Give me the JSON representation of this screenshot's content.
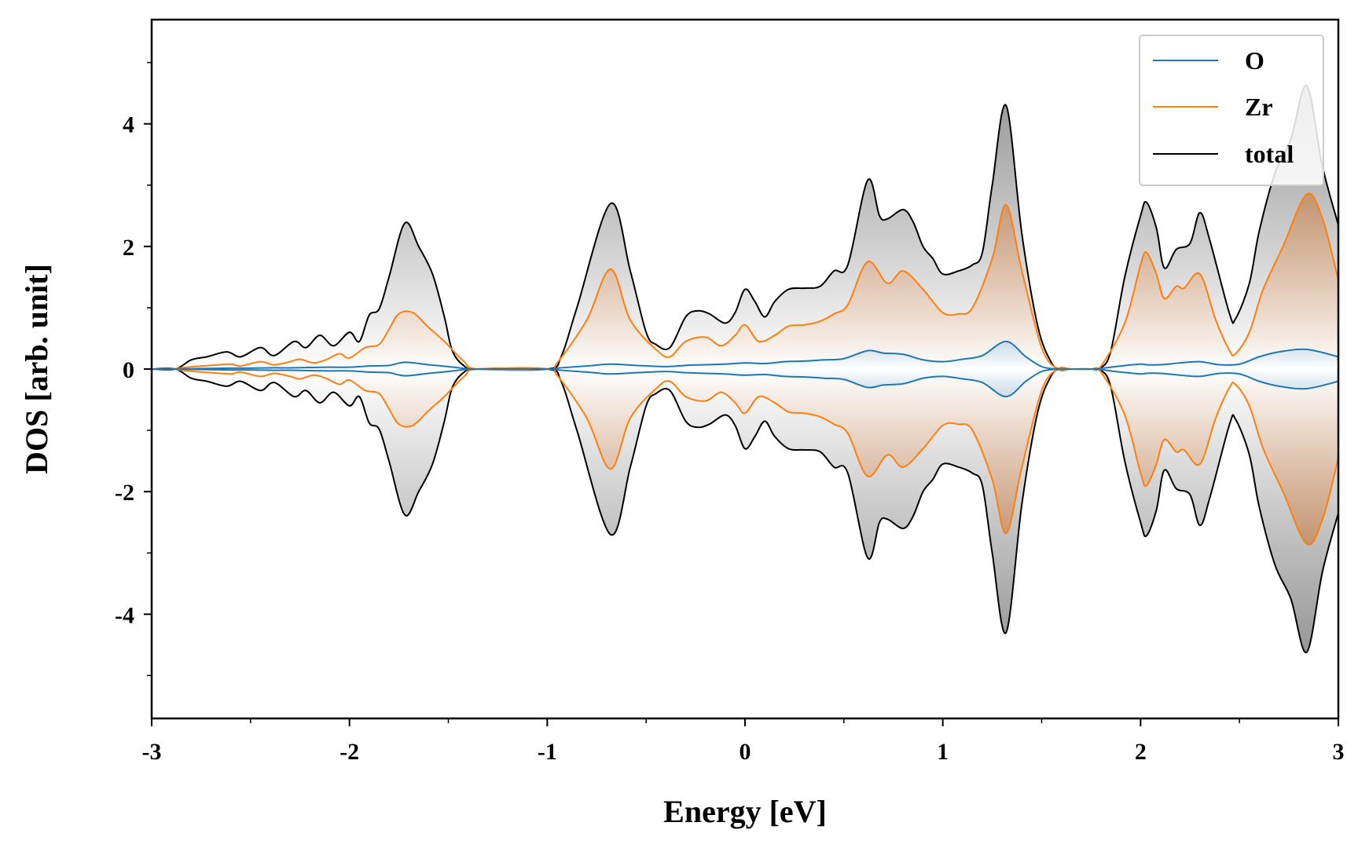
{
  "chart_data": {
    "type": "line",
    "title": "",
    "xlabel": "Energy [eV]",
    "ylabel": "DOS [arb. unit]",
    "xlim": [
      -3,
      3
    ],
    "ylim": [
      -5.7,
      5.7
    ],
    "xticks": [
      -3,
      -2,
      -1,
      0,
      1,
      2,
      3
    ],
    "xtick_labels": [
      "-3",
      "-2",
      "-1",
      "0",
      "1",
      "2",
      "3"
    ],
    "yticks": [
      -4,
      -2,
      0,
      2,
      4
    ],
    "ytick_labels": [
      "-4",
      "-2",
      "0",
      "2",
      "4"
    ],
    "legend_position": "top-right",
    "mirrored": true,
    "series": [
      {
        "name": "O",
        "color": "#1f77b4",
        "x": [
          -3,
          -2.88,
          -2.8,
          -2.7,
          -2.6,
          -2.5,
          -2.4,
          -2.3,
          -2.2,
          -2.1,
          -2.0,
          -1.9,
          -1.8,
          -1.72,
          -1.6,
          -1.5,
          -1.42,
          -1.35,
          -1.0,
          -0.93,
          -0.8,
          -0.68,
          -0.55,
          -0.4,
          -0.3,
          -0.2,
          -0.1,
          0.0,
          0.1,
          0.2,
          0.3,
          0.4,
          0.5,
          0.62,
          0.7,
          0.8,
          0.9,
          1.0,
          1.1,
          1.2,
          1.32,
          1.42,
          1.5,
          1.58,
          1.65,
          1.75,
          1.8,
          1.9,
          2.0,
          2.03,
          2.1,
          2.2,
          2.3,
          2.4,
          2.5,
          2.6,
          2.7,
          2.84,
          3.0
        ],
        "y": [
          0,
          0,
          0.005,
          0.01,
          0.015,
          0.015,
          0.02,
          0.02,
          0.025,
          0.03,
          0.03,
          0.05,
          0.06,
          0.11,
          0.07,
          0.04,
          0.01,
          0,
          0,
          0.02,
          0.05,
          0.08,
          0.06,
          0.04,
          0.06,
          0.07,
          0.08,
          0.1,
          0.09,
          0.12,
          0.13,
          0.15,
          0.17,
          0.3,
          0.26,
          0.24,
          0.15,
          0.12,
          0.16,
          0.22,
          0.45,
          0.2,
          0.04,
          0,
          0,
          0,
          0.01,
          0.05,
          0.08,
          0.07,
          0.07,
          0.1,
          0.12,
          0.07,
          0.08,
          0.2,
          0.28,
          0.32,
          0.2
        ]
      },
      {
        "name": "Zr",
        "color": "#ff7f0e",
        "x": [
          -3,
          -2.9,
          -2.82,
          -2.7,
          -2.6,
          -2.55,
          -2.45,
          -2.38,
          -2.3,
          -2.25,
          -2.18,
          -2.12,
          -2.05,
          -2.0,
          -1.92,
          -1.85,
          -1.8,
          -1.75,
          -1.68,
          -1.6,
          -1.52,
          -1.42,
          -1.35,
          -1.0,
          -0.95,
          -0.8,
          -0.68,
          -0.58,
          -0.45,
          -0.38,
          -0.3,
          -0.2,
          -0.12,
          -0.05,
          0.0,
          0.07,
          0.15,
          0.22,
          0.3,
          0.38,
          0.45,
          0.52,
          0.62,
          0.72,
          0.8,
          0.9,
          1.0,
          1.08,
          1.15,
          1.25,
          1.32,
          1.4,
          1.5,
          1.58,
          1.65,
          1.75,
          1.8,
          1.92,
          2.0,
          2.03,
          2.08,
          2.12,
          2.18,
          2.22,
          2.3,
          2.38,
          2.45,
          2.48,
          2.55,
          2.62,
          2.72,
          2.84,
          2.92,
          3.0
        ],
        "y": [
          0,
          0,
          0.03,
          0.06,
          0.08,
          0.05,
          0.12,
          0.07,
          0.12,
          0.16,
          0.1,
          0.15,
          0.25,
          0.18,
          0.35,
          0.4,
          0.65,
          0.9,
          0.92,
          0.68,
          0.45,
          0.12,
          0,
          0,
          0.1,
          0.8,
          1.63,
          0.8,
          0.32,
          0.2,
          0.45,
          0.52,
          0.38,
          0.55,
          0.72,
          0.45,
          0.55,
          0.7,
          0.72,
          0.78,
          0.9,
          1.05,
          1.75,
          1.4,
          1.6,
          1.3,
          0.92,
          0.9,
          1.0,
          1.8,
          2.68,
          1.6,
          0.35,
          0,
          0,
          0,
          0.05,
          0.75,
          1.7,
          1.9,
          1.55,
          1.15,
          1.35,
          1.32,
          1.55,
          0.8,
          0.3,
          0.25,
          0.6,
          1.3,
          2.0,
          2.85,
          2.45,
          1.45
        ]
      },
      {
        "name": "total",
        "color": "#000000",
        "x": [
          -3,
          -2.88,
          -2.8,
          -2.72,
          -2.62,
          -2.55,
          -2.45,
          -2.38,
          -2.28,
          -2.22,
          -2.15,
          -2.08,
          -2.0,
          -1.95,
          -1.9,
          -1.85,
          -1.8,
          -1.72,
          -1.65,
          -1.58,
          -1.52,
          -1.48,
          -1.42,
          -1.35,
          -1.0,
          -0.93,
          -0.85,
          -0.68,
          -0.58,
          -0.5,
          -0.45,
          -0.38,
          -0.3,
          -0.24,
          -0.18,
          -0.1,
          -0.05,
          0.0,
          0.05,
          0.1,
          0.15,
          0.22,
          0.3,
          0.38,
          0.45,
          0.52,
          0.62,
          0.68,
          0.72,
          0.8,
          0.85,
          0.9,
          0.95,
          1.0,
          1.08,
          1.15,
          1.2,
          1.25,
          1.32,
          1.4,
          1.48,
          1.55,
          1.6,
          1.65,
          1.75,
          1.8,
          1.85,
          1.92,
          2.0,
          2.03,
          2.08,
          2.12,
          2.18,
          2.25,
          2.3,
          2.35,
          2.45,
          2.48,
          2.55,
          2.6,
          2.68,
          2.76,
          2.84,
          2.92,
          3.0
        ],
        "y": [
          0,
          0,
          0.15,
          0.2,
          0.28,
          0.2,
          0.35,
          0.22,
          0.45,
          0.35,
          0.55,
          0.38,
          0.6,
          0.45,
          0.88,
          0.98,
          1.5,
          2.38,
          2.0,
          1.55,
          0.85,
          0.3,
          0.05,
          0,
          0,
          0.2,
          1.0,
          2.7,
          1.6,
          0.6,
          0.4,
          0.35,
          0.85,
          0.95,
          0.9,
          0.75,
          0.92,
          1.3,
          1.1,
          0.85,
          1.1,
          1.3,
          1.32,
          1.35,
          1.6,
          1.7,
          3.08,
          2.5,
          2.45,
          2.6,
          2.4,
          2.0,
          1.8,
          1.55,
          1.6,
          1.7,
          1.9,
          3.0,
          4.3,
          2.2,
          0.7,
          0.1,
          0,
          0,
          0,
          0.02,
          0.3,
          1.5,
          2.5,
          2.72,
          2.3,
          1.65,
          1.95,
          2.05,
          2.55,
          2.1,
          0.9,
          0.82,
          1.4,
          2.25,
          3.2,
          3.75,
          4.62,
          3.3,
          2.35
        ]
      }
    ]
  }
}
